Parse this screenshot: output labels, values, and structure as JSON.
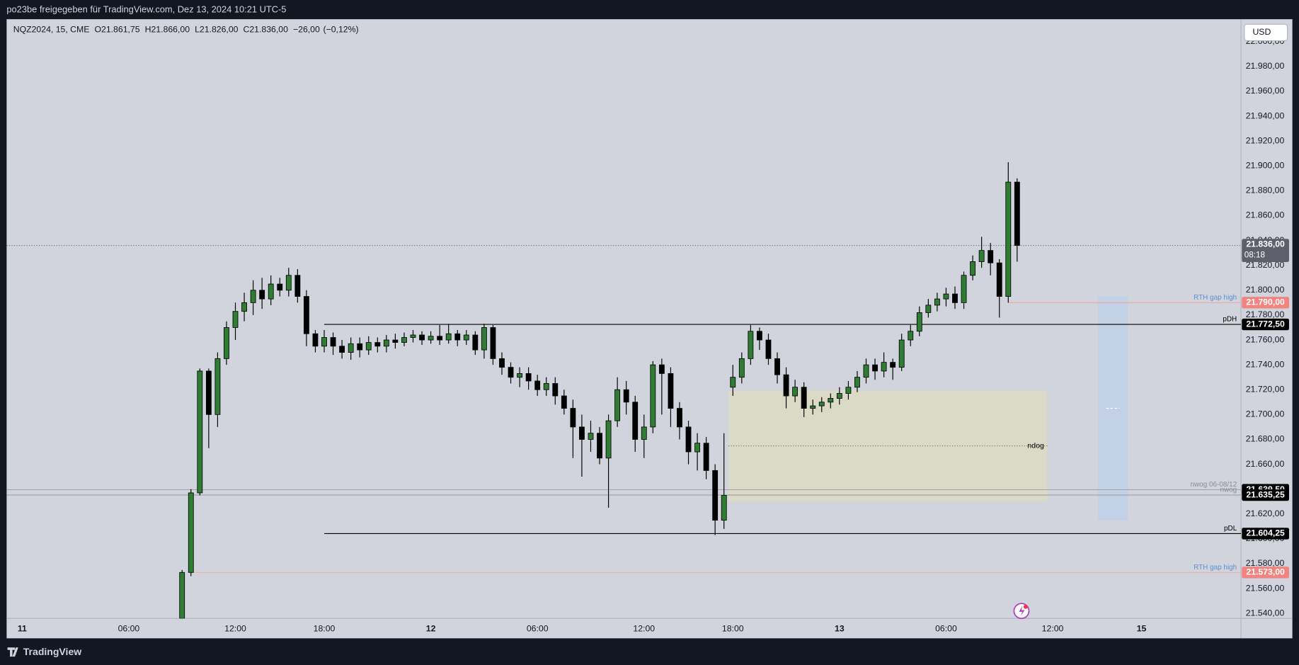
{
  "header": {
    "title": "po23be freigegeben für TradingView.com, Dez 13, 2024 10:21 UTC-5"
  },
  "footer": {
    "brand": "TradingView"
  },
  "currency_button": "USD",
  "chart_data": {
    "type": "candlestick",
    "symbol": "NQZ2024, 15, CME",
    "ohlc_legend": [
      {
        "key": "O",
        "value": 21861.75,
        "label": "21.861,75"
      },
      {
        "key": "H",
        "value": 21866,
        "label": "21.866,00"
      },
      {
        "key": "L",
        "value": 21826,
        "label": "21.826,00"
      },
      {
        "key": "C",
        "value": 21836,
        "label": "21.836,00"
      }
    ],
    "change": {
      "value": -26,
      "label": "−26,00"
    },
    "change_pct": {
      "value": -0.12,
      "label": "(−0,12%)"
    },
    "xlim": [
      -3.5,
      274.4
    ],
    "xticks": [
      {
        "value": 0,
        "label": "11"
      },
      {
        "value": 24,
        "label": "06:00"
      },
      {
        "value": 48,
        "label": "12:00"
      },
      {
        "value": 68,
        "label": "18:00"
      },
      {
        "value": 92,
        "label": "12"
      },
      {
        "value": 116,
        "label": "06:00"
      },
      {
        "value": 140,
        "label": "12:00"
      },
      {
        "value": 160,
        "label": "18:00"
      },
      {
        "value": 184,
        "label": "13"
      },
      {
        "value": 208,
        "label": "06:00"
      },
      {
        "value": 232,
        "label": "12:00"
      },
      {
        "value": 252,
        "label": "15"
      }
    ],
    "ylim": [
      21536,
      22018
    ],
    "yticks": [
      {
        "value": 21540,
        "label": "21.540,00"
      },
      {
        "value": 21560,
        "label": "21.560,00"
      },
      {
        "value": 21580,
        "label": "21.580,00"
      },
      {
        "value": 21600,
        "label": "21.600,00"
      },
      {
        "value": 21620,
        "label": "21.620,00"
      },
      {
        "value": 21640,
        "label": "21.640,00"
      },
      {
        "value": 21660,
        "label": "21.660,00"
      },
      {
        "value": 21680,
        "label": "21.680,00"
      },
      {
        "value": 21700,
        "label": "21.700,00"
      },
      {
        "value": 21720,
        "label": "21.720,00"
      },
      {
        "value": 21740,
        "label": "21.740,00"
      },
      {
        "value": 21760,
        "label": "21.760,00"
      },
      {
        "value": 21780,
        "label": "21.780,00"
      },
      {
        "value": 21800,
        "label": "21.800,00"
      },
      {
        "value": 21820,
        "label": "21.820,00"
      },
      {
        "value": 21840,
        "label": "21.840,00"
      },
      {
        "value": 21860,
        "label": "21.860,00"
      },
      {
        "value": 21880,
        "label": "21.880,00"
      },
      {
        "value": 21900,
        "label": "21.900,00"
      },
      {
        "value": 21920,
        "label": "21.920,00"
      },
      {
        "value": 21940,
        "label": "21.940,00"
      },
      {
        "value": 21960,
        "label": "21.960,00"
      },
      {
        "value": 21980,
        "label": "21.980,00"
      },
      {
        "value": 22000,
        "label": "22.000,00"
      }
    ],
    "up_color": "#2e7d32",
    "down_color": "#000000",
    "candles": [
      {
        "x": 36,
        "open": 21536,
        "high": 21575,
        "low": 21530,
        "close": 21573
      },
      {
        "x": 38,
        "open": 21573,
        "high": 21640,
        "low": 21570,
        "close": 21637
      },
      {
        "x": 40,
        "open": 21637,
        "high": 21737,
        "low": 21635,
        "close": 21735
      },
      {
        "x": 42,
        "open": 21735,
        "high": 21737,
        "low": 21673,
        "close": 21700
      },
      {
        "x": 44,
        "open": 21700,
        "high": 21750,
        "low": 21690,
        "close": 21745
      },
      {
        "x": 46,
        "open": 21745,
        "high": 21775,
        "low": 21740,
        "close": 21770
      },
      {
        "x": 48,
        "open": 21770,
        "high": 21790,
        "low": 21760,
        "close": 21783
      },
      {
        "x": 50,
        "open": 21783,
        "high": 21798,
        "low": 21775,
        "close": 21790
      },
      {
        "x": 52,
        "open": 21790,
        "high": 21808,
        "low": 21780,
        "close": 21800
      },
      {
        "x": 54,
        "open": 21800,
        "high": 21810,
        "low": 21785,
        "close": 21793
      },
      {
        "x": 56,
        "open": 21793,
        "high": 21812,
        "low": 21788,
        "close": 21805
      },
      {
        "x": 58,
        "open": 21805,
        "high": 21810,
        "low": 21795,
        "close": 21800
      },
      {
        "x": 60,
        "open": 21800,
        "high": 21818,
        "low": 21795,
        "close": 21812
      },
      {
        "x": 62,
        "open": 21812,
        "high": 21817,
        "low": 21790,
        "close": 21795
      },
      {
        "x": 64,
        "open": 21795,
        "high": 21800,
        "low": 21755,
        "close": 21765
      },
      {
        "x": 66,
        "open": 21765,
        "high": 21768,
        "low": 21750,
        "close": 21755
      },
      {
        "x": 68,
        "open": 21755,
        "high": 21768,
        "low": 21750,
        "close": 21762
      },
      {
        "x": 70,
        "open": 21762,
        "high": 21766,
        "low": 21748,
        "close": 21755
      },
      {
        "x": 72,
        "open": 21755,
        "high": 21760,
        "low": 21745,
        "close": 21750
      },
      {
        "x": 74,
        "open": 21750,
        "high": 21762,
        "low": 21744,
        "close": 21757
      },
      {
        "x": 76,
        "open": 21757,
        "high": 21762,
        "low": 21746,
        "close": 21752
      },
      {
        "x": 78,
        "open": 21752,
        "high": 21763,
        "low": 21748,
        "close": 21758
      },
      {
        "x": 80,
        "open": 21758,
        "high": 21762,
        "low": 21750,
        "close": 21755
      },
      {
        "x": 82,
        "open": 21755,
        "high": 21764,
        "low": 21750,
        "close": 21760
      },
      {
        "x": 84,
        "open": 21760,
        "high": 21765,
        "low": 21753,
        "close": 21758
      },
      {
        "x": 86,
        "open": 21758,
        "high": 21766,
        "low": 21755,
        "close": 21762
      },
      {
        "x": 88,
        "open": 21762,
        "high": 21768,
        "low": 21758,
        "close": 21764
      },
      {
        "x": 90,
        "open": 21764,
        "high": 21767,
        "low": 21756,
        "close": 21760
      },
      {
        "x": 92,
        "open": 21760,
        "high": 21767,
        "low": 21757,
        "close": 21763
      },
      {
        "x": 94,
        "open": 21763,
        "high": 21772,
        "low": 21756,
        "close": 21760
      },
      {
        "x": 96,
        "open": 21760,
        "high": 21773,
        "low": 21757,
        "close": 21765
      },
      {
        "x": 98,
        "open": 21765,
        "high": 21768,
        "low": 21755,
        "close": 21760
      },
      {
        "x": 100,
        "open": 21760,
        "high": 21768,
        "low": 21756,
        "close": 21764
      },
      {
        "x": 102,
        "open": 21764,
        "high": 21767,
        "low": 21748,
        "close": 21752
      },
      {
        "x": 104,
        "open": 21752,
        "high": 21773,
        "low": 21745,
        "close": 21770
      },
      {
        "x": 106,
        "open": 21770,
        "high": 21772,
        "low": 21740,
        "close": 21745
      },
      {
        "x": 108,
        "open": 21745,
        "high": 21750,
        "low": 21732,
        "close": 21738
      },
      {
        "x": 110,
        "open": 21738,
        "high": 21742,
        "low": 21725,
        "close": 21730
      },
      {
        "x": 112,
        "open": 21730,
        "high": 21738,
        "low": 21722,
        "close": 21733
      },
      {
        "x": 114,
        "open": 21733,
        "high": 21738,
        "low": 21720,
        "close": 21727
      },
      {
        "x": 116,
        "open": 21727,
        "high": 21732,
        "low": 21715,
        "close": 21720
      },
      {
        "x": 118,
        "open": 21720,
        "high": 21730,
        "low": 21715,
        "close": 21725
      },
      {
        "x": 120,
        "open": 21725,
        "high": 21730,
        "low": 21708,
        "close": 21715
      },
      {
        "x": 122,
        "open": 21715,
        "high": 21720,
        "low": 21700,
        "close": 21705
      },
      {
        "x": 124,
        "open": 21705,
        "high": 21712,
        "low": 21665,
        "close": 21690
      },
      {
        "x": 126,
        "open": 21690,
        "high": 21700,
        "low": 21650,
        "close": 21680
      },
      {
        "x": 128,
        "open": 21680,
        "high": 21695,
        "low": 21670,
        "close": 21685
      },
      {
        "x": 130,
        "open": 21685,
        "high": 21690,
        "low": 21660,
        "close": 21665
      },
      {
        "x": 132,
        "open": 21665,
        "high": 21700,
        "low": 21625,
        "close": 21695
      },
      {
        "x": 134,
        "open": 21695,
        "high": 21730,
        "low": 21690,
        "close": 21720
      },
      {
        "x": 136,
        "open": 21720,
        "high": 21727,
        "low": 21700,
        "close": 21710
      },
      {
        "x": 138,
        "open": 21710,
        "high": 21715,
        "low": 21670,
        "close": 21680
      },
      {
        "x": 140,
        "open": 21680,
        "high": 21700,
        "low": 21665,
        "close": 21690
      },
      {
        "x": 142,
        "open": 21690,
        "high": 21743,
        "low": 21685,
        "close": 21740
      },
      {
        "x": 144,
        "open": 21740,
        "high": 21745,
        "low": 21700,
        "close": 21733
      },
      {
        "x": 146,
        "open": 21733,
        "high": 21738,
        "low": 21690,
        "close": 21705
      },
      {
        "x": 148,
        "open": 21705,
        "high": 21710,
        "low": 21680,
        "close": 21690
      },
      {
        "x": 150,
        "open": 21690,
        "high": 21695,
        "low": 21660,
        "close": 21670
      },
      {
        "x": 152,
        "open": 21670,
        "high": 21685,
        "low": 21655,
        "close": 21677
      },
      {
        "x": 154,
        "open": 21677,
        "high": 21682,
        "low": 21648,
        "close": 21655
      },
      {
        "x": 156,
        "open": 21655,
        "high": 21660,
        "low": 21603,
        "close": 21615
      },
      {
        "x": 158,
        "open": 21615,
        "high": 21685,
        "low": 21608,
        "close": 21635
      },
      {
        "x": 160,
        "open": 21722,
        "high": 21740,
        "low": 21715,
        "close": 21730
      },
      {
        "x": 162,
        "open": 21730,
        "high": 21750,
        "low": 21725,
        "close": 21745
      },
      {
        "x": 164,
        "open": 21745,
        "high": 21772,
        "low": 21740,
        "close": 21767
      },
      {
        "x": 166,
        "open": 21767,
        "high": 21770,
        "low": 21752,
        "close": 21760
      },
      {
        "x": 168,
        "open": 21760,
        "high": 21765,
        "low": 21740,
        "close": 21745
      },
      {
        "x": 170,
        "open": 21745,
        "high": 21750,
        "low": 21725,
        "close": 21732
      },
      {
        "x": 172,
        "open": 21732,
        "high": 21738,
        "low": 21705,
        "close": 21715
      },
      {
        "x": 174,
        "open": 21715,
        "high": 21728,
        "low": 21710,
        "close": 21722
      },
      {
        "x": 176,
        "open": 21722,
        "high": 21726,
        "low": 21698,
        "close": 21705
      },
      {
        "x": 178,
        "open": 21705,
        "high": 21712,
        "low": 21700,
        "close": 21707
      },
      {
        "x": 180,
        "open": 21707,
        "high": 21714,
        "low": 21702,
        "close": 21710
      },
      {
        "x": 182,
        "open": 21710,
        "high": 21717,
        "low": 21705,
        "close": 21713
      },
      {
        "x": 184,
        "open": 21713,
        "high": 21722,
        "low": 21708,
        "close": 21717
      },
      {
        "x": 186,
        "open": 21717,
        "high": 21727,
        "low": 21712,
        "close": 21722
      },
      {
        "x": 188,
        "open": 21722,
        "high": 21735,
        "low": 21718,
        "close": 21730
      },
      {
        "x": 190,
        "open": 21730,
        "high": 21745,
        "low": 21725,
        "close": 21740
      },
      {
        "x": 192,
        "open": 21740,
        "high": 21745,
        "low": 21728,
        "close": 21735
      },
      {
        "x": 194,
        "open": 21735,
        "high": 21750,
        "low": 21730,
        "close": 21742
      },
      {
        "x": 196,
        "open": 21742,
        "high": 21745,
        "low": 21728,
        "close": 21738
      },
      {
        "x": 198,
        "open": 21738,
        "high": 21765,
        "low": 21735,
        "close": 21760
      },
      {
        "x": 200,
        "open": 21760,
        "high": 21772,
        "low": 21755,
        "close": 21767
      },
      {
        "x": 202,
        "open": 21767,
        "high": 21787,
        "low": 21763,
        "close": 21782
      },
      {
        "x": 204,
        "open": 21782,
        "high": 21793,
        "low": 21778,
        "close": 21788
      },
      {
        "x": 206,
        "open": 21788,
        "high": 21798,
        "low": 21783,
        "close": 21793
      },
      {
        "x": 208,
        "open": 21793,
        "high": 21802,
        "low": 21787,
        "close": 21797
      },
      {
        "x": 210,
        "open": 21797,
        "high": 21803,
        "low": 21785,
        "close": 21790
      },
      {
        "x": 212,
        "open": 21790,
        "high": 21815,
        "low": 21785,
        "close": 21812
      },
      {
        "x": 214,
        "open": 21812,
        "high": 21828,
        "low": 21808,
        "close": 21823
      },
      {
        "x": 216,
        "open": 21823,
        "high": 21843,
        "low": 21818,
        "close": 21832
      },
      {
        "x": 218,
        "open": 21832,
        "high": 21838,
        "low": 21812,
        "close": 21822
      },
      {
        "x": 220,
        "open": 21822,
        "high": 21825,
        "low": 21778,
        "close": 21795
      },
      {
        "x": 222,
        "open": 21795,
        "high": 21903,
        "low": 21790,
        "close": 21887
      },
      {
        "x": 224,
        "open": 21887,
        "high": 21890,
        "low": 21823,
        "close": 21836
      }
    ],
    "levels": [
      {
        "name": "RTH gap high",
        "value": 21790,
        "label": "21.790,00",
        "from": 222,
        "color": "#f2a3a0",
        "name_color": "#5b8fd0",
        "tag_color": "#f2837f"
      },
      {
        "name": "pDH",
        "value": 21772.5,
        "label": "21.772,50",
        "from": 68,
        "color": "#000000",
        "name_color": "#000000",
        "tag_color": "#000000"
      },
      {
        "name": "nwog 06-08/12",
        "value": 21639.5,
        "label": "21.639,50",
        "from": -3.5,
        "color": "#9598a1",
        "name_color": "#8a8d96",
        "tag_color": "#000000"
      },
      {
        "name": "nwog",
        "value": 21635.25,
        "label": "21.635,25",
        "from": -3.5,
        "color": "#9598a1",
        "name_color": "#8a8d96",
        "tag_color": "#000000"
      },
      {
        "name": "pDL",
        "value": 21604.25,
        "label": "21.604,25",
        "from": 68,
        "color": "#000000",
        "name_color": "#000000",
        "tag_color": "#000000"
      },
      {
        "name": "RTH gap high",
        "value": 21573,
        "label": "21.573,00",
        "from": 38,
        "color": "#f2a3a0",
        "name_color": "#5b8fd0",
        "tag_color": "#f2837f"
      }
    ],
    "boxes": [
      {
        "name": "ndog",
        "from": 159,
        "to": 230.8,
        "top": 21719.5,
        "bottom": 21630,
        "color": "#dcdac3",
        "midline_color": "#555555"
      },
      {
        "from": 242.2,
        "to": 248.9,
        "top": 21795,
        "bottom": 21615,
        "color": "#bfd0e8",
        "midline_color": "#ffffff"
      }
    ],
    "last": {
      "value": 21836,
      "label": "21.836,00",
      "countdown": "08:18",
      "color": "#5d606b"
    }
  }
}
